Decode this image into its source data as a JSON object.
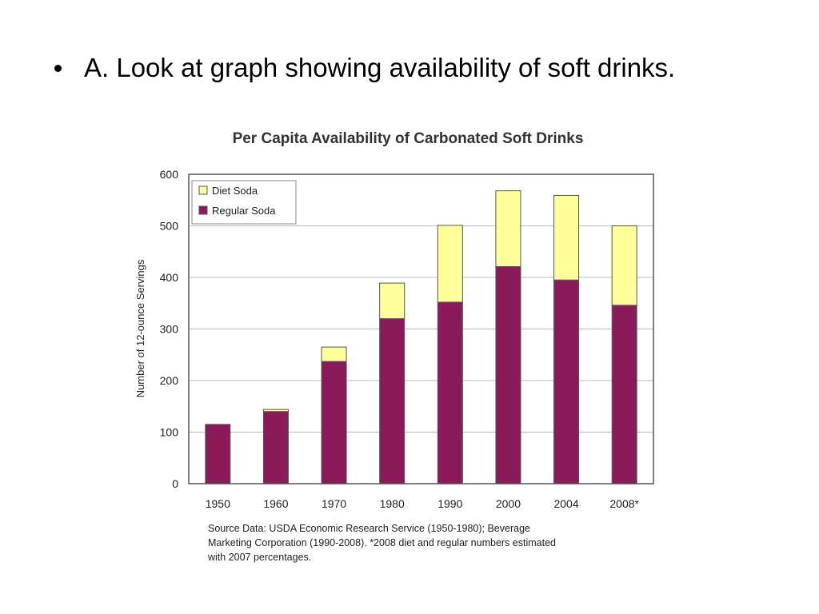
{
  "slide": {
    "bullet_text": "A. Look at graph showing availability of soft drinks."
  },
  "chart_data": {
    "type": "bar",
    "stacked": true,
    "title": "Per Capita Availability of Carbonated Soft Drinks",
    "xlabel": "",
    "ylabel": "Number of 12-ounce Servings",
    "categories": [
      "1950",
      "1960",
      "1970",
      "1980",
      "1990",
      "2000",
      "2004",
      "2008*"
    ],
    "ylim": [
      0,
      600
    ],
    "yticks": [
      0,
      100,
      200,
      300,
      400,
      500,
      600
    ],
    "grid": true,
    "legend_position": "top-left",
    "series": [
      {
        "name": "Regular Soda",
        "color": "#8B1A5B",
        "values": [
          115,
          140,
          237,
          320,
          352,
          421,
          395,
          346
        ]
      },
      {
        "name": "Diet Soda",
        "color": "#FFFF99",
        "values": [
          0,
          4,
          28,
          69,
          149,
          147,
          164,
          154
        ]
      }
    ],
    "source_note": [
      "Source Data: USDA Economic Research Service (1950-1980); Beverage",
      "Marketing Corporation (1990-2008).  *2008 diet and regular numbers estimated",
      "with 2007 percentages."
    ]
  }
}
